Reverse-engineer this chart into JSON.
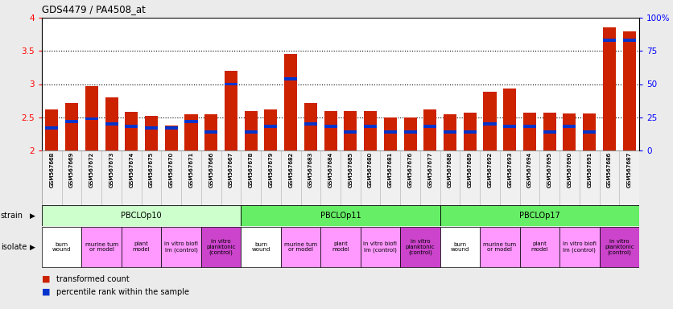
{
  "title": "GDS4479 / PA4508_at",
  "gsm_labels": [
    "GSM567668",
    "GSM567669",
    "GSM567672",
    "GSM567673",
    "GSM567674",
    "GSM567675",
    "GSM567670",
    "GSM567671",
    "GSM567666",
    "GSM567667",
    "GSM567678",
    "GSM567679",
    "GSM567682",
    "GSM567683",
    "GSM567684",
    "GSM567685",
    "GSM567680",
    "GSM567681",
    "GSM567676",
    "GSM567677",
    "GSM567688",
    "GSM567689",
    "GSM567692",
    "GSM567693",
    "GSM567694",
    "GSM567695",
    "GSM567690",
    "GSM567691",
    "GSM567686",
    "GSM567687"
  ],
  "red_values": [
    2.62,
    2.71,
    2.97,
    2.8,
    2.58,
    2.52,
    2.38,
    2.55,
    2.55,
    3.2,
    2.6,
    2.62,
    3.45,
    2.71,
    2.6,
    2.6,
    2.6,
    2.5,
    2.5,
    2.62,
    2.54,
    2.57,
    2.89,
    2.93,
    2.57,
    2.57,
    2.56,
    2.56,
    3.85,
    3.8
  ],
  "blue_percentiles": [
    17,
    22,
    24,
    20,
    18,
    17,
    17,
    22,
    14,
    50,
    14,
    18,
    54,
    20,
    18,
    14,
    18,
    14,
    14,
    18,
    14,
    14,
    20,
    18,
    18,
    14,
    18,
    14,
    83,
    83
  ],
  "ymin": 2.0,
  "ymax": 4.0,
  "yticks_left": [
    2.0,
    2.5,
    3.0,
    3.5,
    4.0
  ],
  "ytick_labels_left": [
    "2",
    "2.5",
    "3",
    "3.5",
    "4"
  ],
  "yticks_right": [
    0,
    25,
    50,
    75,
    100
  ],
  "ytick_labels_right": [
    "0",
    "25",
    "50",
    "75",
    "100%"
  ],
  "strain_groups": [
    {
      "label": "PBCLOp10",
      "start": 0,
      "end": 9,
      "color": "#ccffcc"
    },
    {
      "label": "PBCLOp11",
      "start": 10,
      "end": 19,
      "color": "#66ee66"
    },
    {
      "label": "PBCLOp17",
      "start": 20,
      "end": 29,
      "color": "#66ee66"
    }
  ],
  "isolate_groups": [
    {
      "label": "burn\nwound",
      "start": 0,
      "end": 1,
      "color": "#ffffff"
    },
    {
      "label": "murine tum\nor model",
      "start": 2,
      "end": 3,
      "color": "#ff99ff"
    },
    {
      "label": "plant\nmodel",
      "start": 4,
      "end": 5,
      "color": "#ff99ff"
    },
    {
      "label": "in vitro biofi\nlm (control)",
      "start": 6,
      "end": 7,
      "color": "#ff99ff"
    },
    {
      "label": "in vitro\nplanktonic\n(control)",
      "start": 8,
      "end": 9,
      "color": "#cc44cc"
    },
    {
      "label": "burn\nwound",
      "start": 10,
      "end": 11,
      "color": "#ffffff"
    },
    {
      "label": "murine tum\nor model",
      "start": 12,
      "end": 13,
      "color": "#ff99ff"
    },
    {
      "label": "plant\nmodel",
      "start": 14,
      "end": 15,
      "color": "#ff99ff"
    },
    {
      "label": "in vitro biofi\nlm (control)",
      "start": 16,
      "end": 17,
      "color": "#ff99ff"
    },
    {
      "label": "in vitro\nplanktonic\n(control)",
      "start": 18,
      "end": 19,
      "color": "#cc44cc"
    },
    {
      "label": "burn\nwound",
      "start": 20,
      "end": 21,
      "color": "#ffffff"
    },
    {
      "label": "murine tum\nor model",
      "start": 22,
      "end": 23,
      "color": "#ff99ff"
    },
    {
      "label": "plant\nmodel",
      "start": 24,
      "end": 25,
      "color": "#ff99ff"
    },
    {
      "label": "in vitro biofi\nlm (control)",
      "start": 26,
      "end": 27,
      "color": "#ff99ff"
    },
    {
      "label": "in vitro\nplanktonic\n(control)",
      "start": 28,
      "end": 29,
      "color": "#cc44cc"
    }
  ],
  "bar_color_red": "#cc2200",
  "bar_color_blue": "#0033cc",
  "fig_bg": "#ebebeb",
  "plot_bg": "#ffffff"
}
